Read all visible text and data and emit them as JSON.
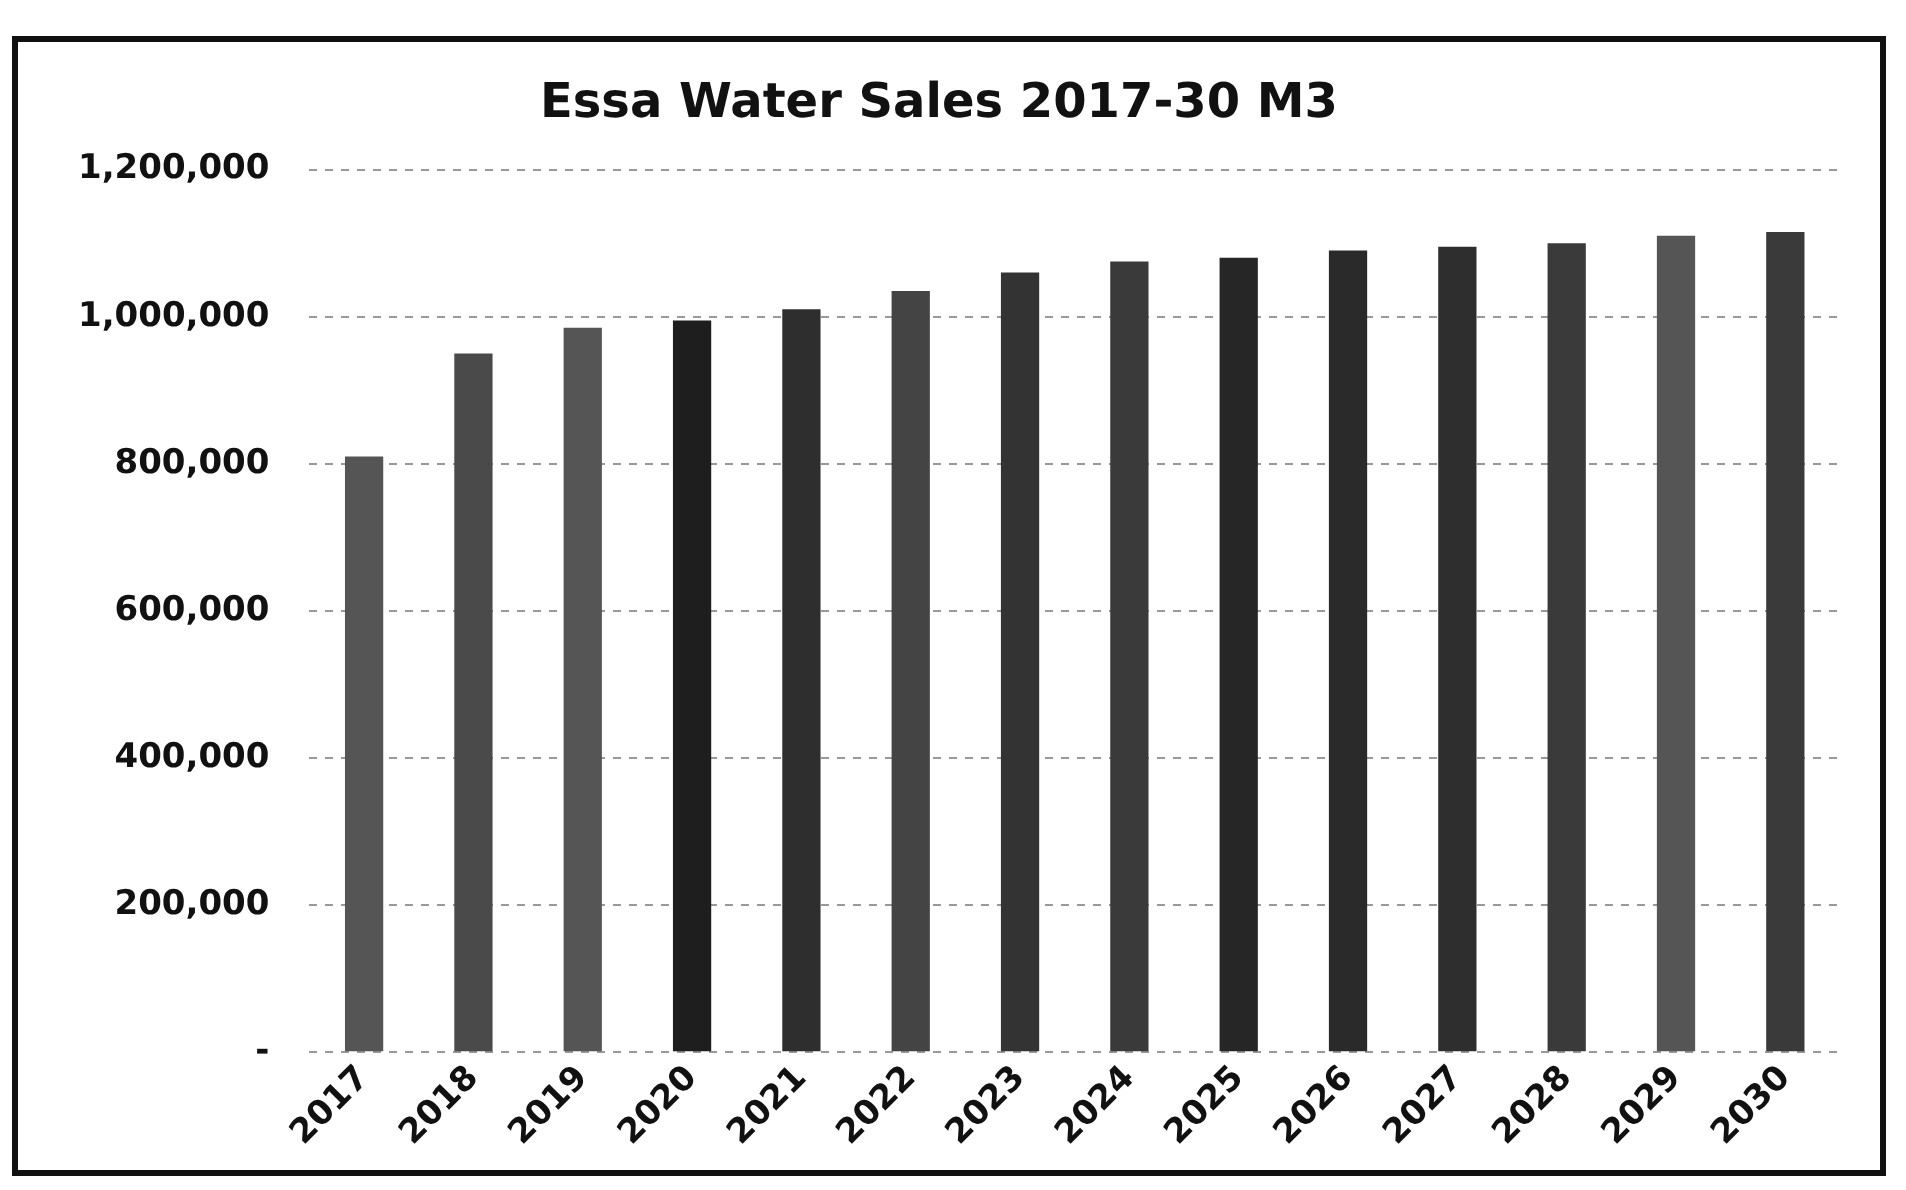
{
  "chart_data": {
    "type": "bar",
    "title": "Essa Water Sales 2017-30 M3",
    "categories": [
      "2017",
      "2018",
      "2019",
      "2020",
      "2021",
      "2022",
      "2023",
      "2024",
      "2025",
      "2026",
      "2027",
      "2028",
      "2029",
      "2030"
    ],
    "values": [
      810000,
      950000,
      985000,
      995000,
      1010000,
      1035000,
      1060000,
      1075000,
      1080000,
      1090000,
      1095000,
      1100000,
      1110000,
      1115000
    ],
    "colors": [
      "#555555",
      "#4a4a4a",
      "#555555",
      "#1e1e1e",
      "#2e2e2e",
      "#444444",
      "#333333",
      "#3a3a3a",
      "#262626",
      "#2a2a2a",
      "#2e2e2e",
      "#3a3a3a",
      "#555555",
      "#3a3a3a"
    ],
    "ylim": [
      0,
      1200000
    ],
    "yticks": [
      {
        "value": 0,
        "label": "-"
      },
      {
        "value": 200000,
        "label": "200,000"
      },
      {
        "value": 400000,
        "label": "400,000"
      },
      {
        "value": 600000,
        "label": "600,000"
      },
      {
        "value": 800000,
        "label": "800,000"
      },
      {
        "value": 1000000,
        "label": "1,000,000"
      },
      {
        "value": 1200000,
        "label": "1,200,000"
      }
    ],
    "grid": "y"
  }
}
